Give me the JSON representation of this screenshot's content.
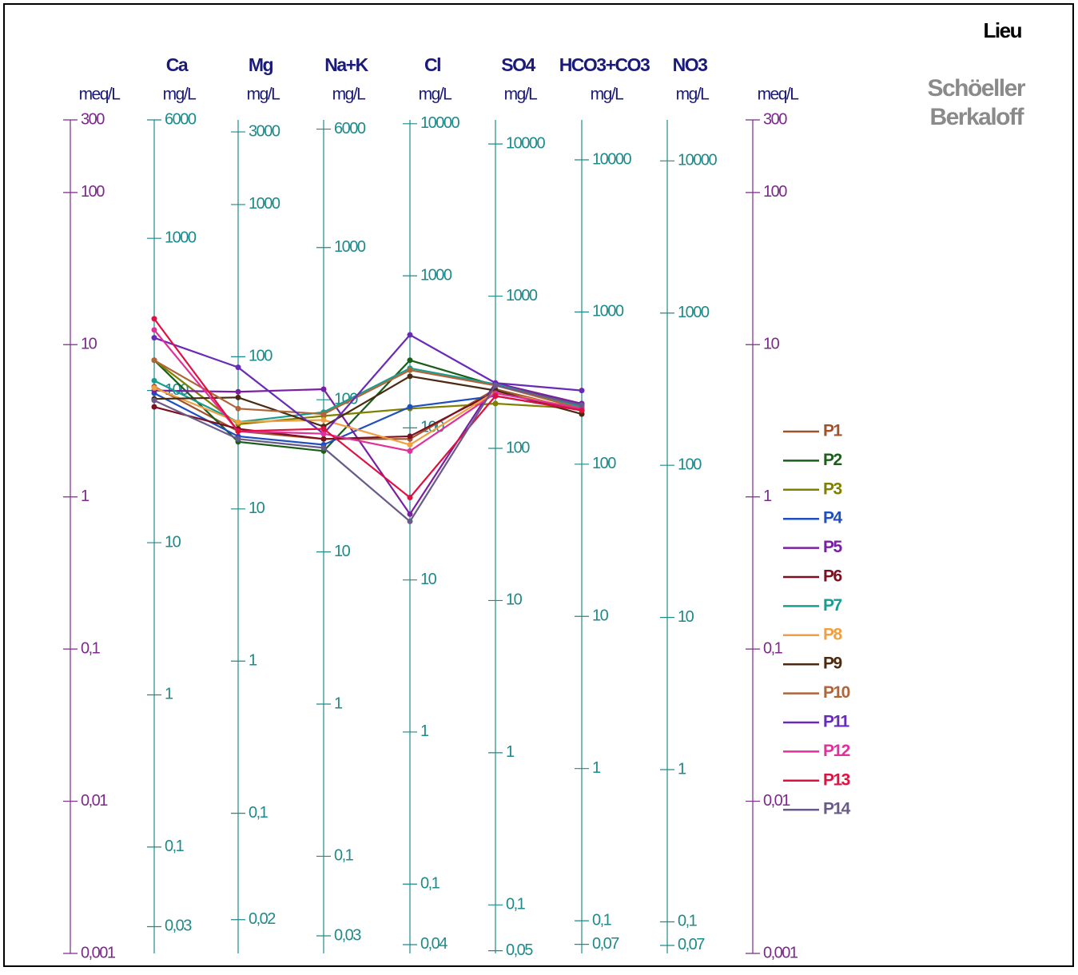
{
  "chart_data": {
    "type": "schoeller",
    "title": "Lieu",
    "subtitle_lines": [
      "Schöeller",
      "Berkaloff"
    ],
    "log_scale": true,
    "categories": [
      "Ca",
      "Mg",
      "Na+K",
      "Cl",
      "SO4",
      "HCO3+CO3",
      "NO3"
    ],
    "axes": [
      {
        "unit": "meq/L",
        "color": "#7b2a8a",
        "ylim": [
          0.001,
          300
        ],
        "yticks": [
          300,
          100,
          10,
          1,
          {
            "value": 0.1,
            "label": "0,1"
          },
          {
            "value": 0.01,
            "label": "0,01"
          },
          {
            "value": 0.001,
            "label": "0,001"
          }
        ]
      },
      {
        "unit": "mg/L",
        "color": "#1f8a8a",
        "ylim": [
          0.02,
          6000
        ],
        "yticks": [
          6000,
          1000,
          100,
          10,
          1,
          {
            "value": 0.1,
            "label": "0,1"
          },
          {
            "value": 0.03,
            "label": "0,03"
          }
        ]
      },
      {
        "unit": "mg/L",
        "color": "#1f8a8a",
        "ylim": [
          0.012,
          3600
        ],
        "yticks": [
          3000,
          1000,
          100,
          10,
          1,
          {
            "value": 0.1,
            "label": "0,1"
          },
          {
            "value": 0.02,
            "label": "0,02"
          }
        ]
      },
      {
        "unit": "mg/L",
        "color": "#1f8a8a",
        "ylim": [
          0.023,
          6900
        ],
        "yticks": [
          6000,
          1000,
          100,
          10,
          1,
          {
            "value": 0.1,
            "label": "0,1"
          },
          {
            "value": 0.03,
            "label": "0,03"
          }
        ]
      },
      {
        "unit": "mg/L",
        "color": "#1f8a8a",
        "ylim": [
          0.035,
          10600
        ],
        "yticks": [
          10000,
          1000,
          100,
          10,
          1,
          {
            "value": 0.1,
            "label": "0,1"
          },
          {
            "value": 0.04,
            "label": "0,04"
          }
        ]
      },
      {
        "unit": "mg/L",
        "color": "#1f8a8a",
        "ylim": [
          0.048,
          14400
        ],
        "yticks": [
          10000,
          1000,
          100,
          10,
          1,
          {
            "value": 0.1,
            "label": "0,1"
          },
          {
            "value": 0.05,
            "label": "0,05"
          }
        ]
      },
      {
        "unit": "mg/L",
        "color": "#1f8a8a",
        "ylim": [
          0.061,
          18300
        ],
        "yticks": [
          10000,
          1000,
          100,
          10,
          1,
          {
            "value": 0.1,
            "label": "0,1"
          },
          {
            "value": 0.07,
            "label": "0,07"
          }
        ]
      },
      {
        "unit": "mg/L",
        "color": "#1f8a8a",
        "ylim": [
          0.062,
          18600
        ],
        "yticks": [
          10000,
          1000,
          100,
          10,
          1,
          {
            "value": 0.1,
            "label": "0,1"
          },
          {
            "value": 0.07,
            "label": "0,07"
          }
        ]
      },
      {
        "unit": "meq/L",
        "color": "#7b2a8a",
        "ylim": [
          0.001,
          300
        ],
        "yticks": [
          300,
          100,
          10,
          1,
          {
            "value": 0.1,
            "label": "0,1"
          },
          {
            "value": 0.01,
            "label": "0,01"
          },
          {
            "value": 0.001,
            "label": "0,001"
          }
        ]
      }
    ],
    "series": [
      {
        "name": "P1",
        "color": "#a0522d",
        "values": [
          5.3,
          2.7,
          2.4,
          2.4,
          5.1,
          3.7,
          null
        ]
      },
      {
        "name": "P2",
        "color": "#1a5e1a",
        "values": [
          7.9,
          2.3,
          2.0,
          7.9,
          5.4,
          4.1,
          null
        ]
      },
      {
        "name": "P3",
        "color": "#808000",
        "values": [
          7.9,
          3.0,
          3.4,
          3.8,
          4.1,
          3.8,
          null
        ]
      },
      {
        "name": "P4",
        "color": "#1f4fbf",
        "values": [
          4.8,
          2.5,
          2.2,
          3.9,
          4.6,
          3.7,
          null
        ]
      },
      {
        "name": "P5",
        "color": "#7b1fa2",
        "values": [
          5.0,
          4.9,
          5.1,
          0.77,
          5.6,
          4.1,
          null
        ]
      },
      {
        "name": "P6",
        "color": "#7a1020",
        "values": [
          3.9,
          2.8,
          2.4,
          2.5,
          4.9,
          3.7,
          null
        ]
      },
      {
        "name": "P7",
        "color": "#179e8e",
        "values": [
          5.8,
          3.1,
          3.6,
          7.0,
          5.5,
          3.9,
          null
        ]
      },
      {
        "name": "P8",
        "color": "#f0a040",
        "values": [
          5.2,
          3.1,
          3.2,
          2.2,
          4.9,
          3.8,
          null
        ]
      },
      {
        "name": "P9",
        "color": "#4a2a10",
        "values": [
          4.4,
          4.5,
          2.9,
          6.2,
          5.0,
          3.5,
          null
        ]
      },
      {
        "name": "P10",
        "color": "#b0643a",
        "values": [
          7.9,
          3.8,
          3.5,
          6.8,
          5.4,
          3.8,
          null
        ]
      },
      {
        "name": "P11",
        "color": "#6a2ab8",
        "values": [
          11.1,
          7.1,
          2.6,
          11.6,
          5.6,
          5.0,
          null
        ]
      },
      {
        "name": "P12",
        "color": "#e0309a",
        "values": [
          12.5,
          2.7,
          2.6,
          2.0,
          4.8,
          3.8,
          null
        ]
      },
      {
        "name": "P13",
        "color": "#e01040",
        "values": [
          14.8,
          2.7,
          2.8,
          0.99,
          4.6,
          3.7,
          null
        ]
      },
      {
        "name": "P14",
        "color": "#6a5a8a",
        "values": [
          4.3,
          2.4,
          2.1,
          0.69,
          5.4,
          4.0,
          null
        ]
      }
    ]
  }
}
